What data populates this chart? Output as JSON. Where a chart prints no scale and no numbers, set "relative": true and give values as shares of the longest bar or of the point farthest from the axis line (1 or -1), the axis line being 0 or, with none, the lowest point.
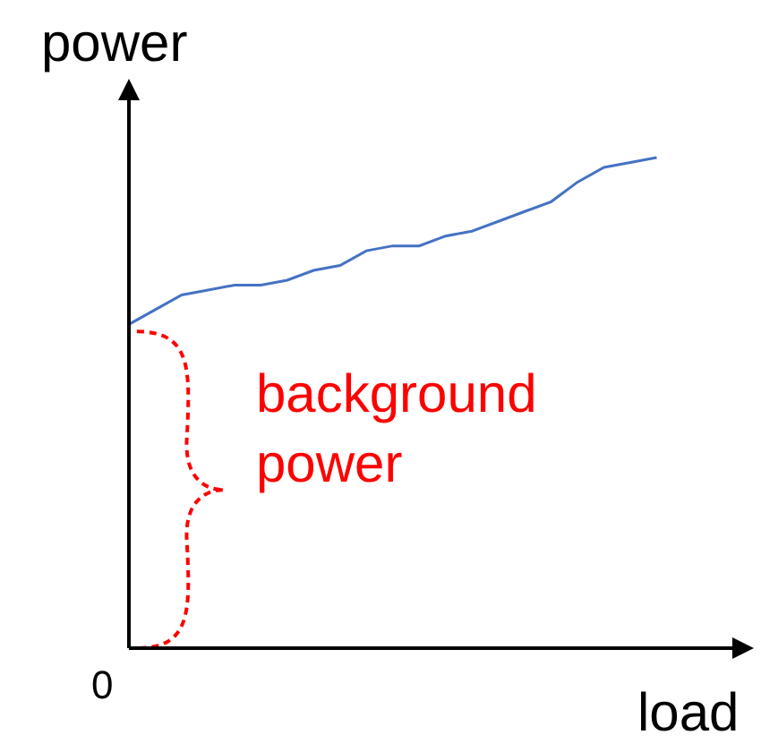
{
  "chart_data": {
    "type": "line",
    "relative": true,
    "xlabel": "load",
    "ylabel": "power",
    "categories": [
      null,
      null,
      null,
      null,
      null,
      null,
      null,
      null,
      null,
      null,
      null,
      null,
      null,
      null,
      null,
      null,
      null,
      null,
      null,
      null,
      null,
      null,
      null,
      null
    ],
    "series": [
      {
        "color": "#4472c4",
        "values": [
          0.66,
          0.69,
          0.72,
          0.73,
          0.74,
          0.74,
          0.75,
          0.77,
          0.78,
          0.81,
          0.82,
          0.82,
          0.84,
          0.85,
          0.87,
          0.89,
          0.91,
          0.95,
          0.98,
          0.99,
          1.0,
          null,
          null,
          null
        ]
      }
    ],
    "annotations": [
      "0",
      "background\npower"
    ],
    "marker": "none",
    "line_style": "solid"
  }
}
